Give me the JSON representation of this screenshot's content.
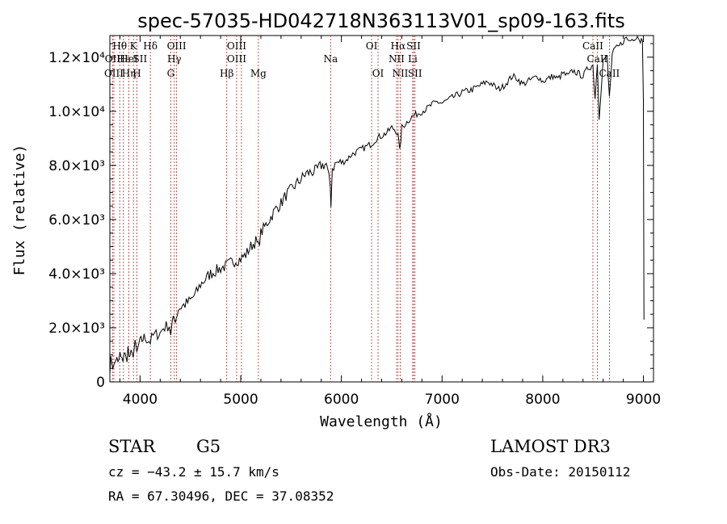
{
  "chart_data": {
    "type": "line",
    "title": "spec-57035-HD042718N363113V01_sp09-163.fits",
    "xlabel": "Wavelength (Å)",
    "ylabel": "Flux (relative)",
    "xlim": [
      3700,
      9100
    ],
    "ylim": [
      0,
      12800
    ],
    "x_ticks": [
      4000,
      5000,
      6000,
      7000,
      8000,
      9000
    ],
    "x_tick_labels": [
      "4000",
      "5000",
      "6000",
      "7000",
      "8000",
      "9000"
    ],
    "y_ticks": [
      0,
      2000,
      4000,
      6000,
      8000,
      10000,
      12000
    ],
    "y_tick_labels": [
      "0",
      "2.0×10³",
      "4.0×10³",
      "6.0×10³",
      "8.0×10³",
      "1.0×10⁴",
      "1.2×10⁴"
    ],
    "series": [
      {
        "name": "spectrum",
        "x": [
          3700,
          3720,
          3740,
          3760,
          3780,
          3800,
          3820,
          3840,
          3860,
          3880,
          3900,
          3920,
          3933,
          3950,
          3968,
          3990,
          4010,
          4030,
          4050,
          4080,
          4102,
          4130,
          4160,
          4200,
          4230,
          4260,
          4290,
          4305,
          4320,
          4340,
          4360,
          4380,
          4420,
          4460,
          4500,
          4560,
          4600,
          4650,
          4700,
          4750,
          4800,
          4861,
          4900,
          4950,
          5000,
          5050,
          5100,
          5150,
          5175,
          5200,
          5250,
          5300,
          5350,
          5400,
          5450,
          5500,
          5550,
          5600,
          5650,
          5700,
          5750,
          5800,
          5850,
          5890,
          5896,
          5910,
          5950,
          6000,
          6050,
          6100,
          6150,
          6200,
          6250,
          6300,
          6350,
          6400,
          6450,
          6500,
          6540,
          6563,
          6580,
          6600,
          6650,
          6700,
          6750,
          6800,
          6850,
          6900,
          6950,
          7000,
          7050,
          7100,
          7150,
          7200,
          7250,
          7300,
          7350,
          7400,
          7450,
          7500,
          7550,
          7600,
          7650,
          7700,
          7750,
          7800,
          7850,
          7900,
          7950,
          8000,
          8050,
          8100,
          8150,
          8200,
          8250,
          8300,
          8350,
          8400,
          8450,
          8498,
          8520,
          8542,
          8560,
          8600,
          8640,
          8662,
          8690,
          8720,
          8760,
          8800,
          8830,
          8860,
          8900,
          8940,
          8970,
          8990,
          9000,
          9005
        ],
        "y": [
          600,
          800,
          500,
          900,
          600,
          1000,
          700,
          1100,
          800,
          1200,
          700,
          1300,
          900,
          1300,
          1000,
          1400,
          1500,
          1600,
          1650,
          1550,
          1500,
          1700,
          1750,
          1800,
          2000,
          2050,
          2100,
          1800,
          2200,
          2300,
          2400,
          2700,
          2800,
          2900,
          3000,
          3300,
          3600,
          3800,
          4000,
          4100,
          4200,
          4300,
          4400,
          4500,
          4550,
          4700,
          5000,
          5200,
          5000,
          5500,
          5800,
          6100,
          6400,
          6600,
          6900,
          7100,
          7300,
          7500,
          7700,
          7750,
          7800,
          8000,
          8050,
          7200,
          6600,
          7900,
          8100,
          8100,
          8200,
          8400,
          8500,
          8600,
          8700,
          8800,
          9000,
          9100,
          9200,
          9400,
          9300,
          9100,
          8500,
          9400,
          9600,
          9800,
          9900,
          10000,
          10100,
          10250,
          10350,
          10300,
          10400,
          10500,
          10600,
          10700,
          10750,
          10800,
          10900,
          11000,
          11100,
          11000,
          10800,
          10900,
          11100,
          11300,
          11200,
          11000,
          11100,
          11200,
          11300,
          11100,
          11200,
          11300,
          11200,
          11400,
          11300,
          11500,
          11400,
          11300,
          11600,
          11700,
          10500,
          11800,
          9800,
          11900,
          12000,
          10500,
          12100,
          12300,
          12400,
          12600,
          12700,
          12600,
          12700,
          12800,
          12600,
          12700,
          10500,
          2300
        ]
      }
    ],
    "spectral_lines": [
      {
        "label": "Hθ",
        "x": 3798,
        "row": 0
      },
      {
        "label": "OII",
        "x": 3727,
        "row": 1
      },
      {
        "label": "OIII",
        "x": 3740,
        "row": 2
      },
      {
        "label": "Hε",
        "x": 3835,
        "row": 1
      },
      {
        "label": "Hη",
        "x": 3889,
        "row": 2
      },
      {
        "label": "K",
        "x": 3934,
        "row": 0
      },
      {
        "label": "H",
        "x": 3969,
        "row": 2
      },
      {
        "label": "SII",
        "x": 4000,
        "row": 1
      },
      {
        "label": "HeI",
        "x": 3888,
        "row": 1
      },
      {
        "label": "Hδ",
        "x": 4102,
        "row": 0
      },
      {
        "label": "OIII",
        "x": 4363,
        "row": 0
      },
      {
        "label": "Hγ",
        "x": 4340,
        "row": 1
      },
      {
        "label": "G",
        "x": 4305,
        "row": 2
      },
      {
        "label": "OIII",
        "x": 4959,
        "row": 0
      },
      {
        "label": "OIII",
        "x": 4959,
        "row": 1
      },
      {
        "label": "Hβ",
        "x": 4861,
        "row": 2
      },
      {
        "label": "Mg",
        "x": 5175,
        "row": 2
      },
      {
        "label": "Na",
        "x": 5893,
        "row": 1
      },
      {
        "label": "OI",
        "x": 6300,
        "row": 0
      },
      {
        "label": "OI",
        "x": 6364,
        "row": 2
      },
      {
        "label": "Hα",
        "x": 6563,
        "row": 0
      },
      {
        "label": "SII",
        "x": 6717,
        "row": 0
      },
      {
        "label": "NII",
        "x": 6548,
        "row": 1
      },
      {
        "label": "Li",
        "x": 6708,
        "row": 1
      },
      {
        "label": "NII",
        "x": 6584,
        "row": 2
      },
      {
        "label": "SII",
        "x": 6731,
        "row": 2
      },
      {
        "label": "CaII",
        "x": 8498,
        "row": 0
      },
      {
        "label": "CaII",
        "x": 8542,
        "row": 1
      },
      {
        "label": "CaII",
        "x": 8662,
        "row": 2
      }
    ],
    "line_marker_positions": [
      3727,
      3740,
      3798,
      3835,
      3889,
      3934,
      3969,
      4102,
      4305,
      4340,
      4363,
      4861,
      4959,
      5007,
      5175,
      5893,
      6300,
      6364,
      6548,
      6563,
      6584,
      6708,
      6717,
      6731,
      8498,
      8542,
      8662
    ]
  },
  "info": {
    "class": "STAR",
    "subclass": "G5",
    "survey": "LAMOST DR3",
    "redshift": "cz = −43.2 ± 15.7 km/s",
    "obs_date": "Obs-Date: 20150112",
    "coords": "RA =  67.30496, DEC =  37.08352"
  },
  "colors": {
    "line_marker": "#b03030",
    "spectrum": "#000000"
  }
}
